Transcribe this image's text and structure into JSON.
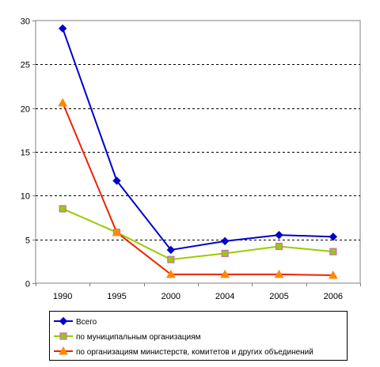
{
  "chart_data": {
    "type": "line",
    "categories": [
      "1990",
      "1995",
      "2000",
      "2004",
      "2005",
      "2006"
    ],
    "ylim": [
      0,
      30
    ],
    "yticks": [
      0,
      5,
      10,
      15,
      20,
      25,
      30
    ],
    "grid": "horizontal-dashed",
    "legend_position": "bottom",
    "series": [
      {
        "name": "Всего",
        "values": [
          29.1,
          11.7,
          3.8,
          4.8,
          5.5,
          5.3
        ],
        "color": "#0000cc",
        "marker": "diamond",
        "marker_fill": "#0000cc"
      },
      {
        "name": "по муниципальным организациям",
        "values": [
          8.5,
          5.8,
          2.7,
          3.4,
          4.2,
          3.6
        ],
        "color": "#99cc00",
        "marker": "square",
        "marker_fill": "#99cc00",
        "marker_stroke": "#cc66cc"
      },
      {
        "name": "по организациям министерств, комитетов и других объединений",
        "values": [
          20.6,
          5.8,
          1.0,
          1.0,
          1.0,
          0.9
        ],
        "color": "#ee2200",
        "marker": "triangle",
        "marker_fill": "#ff8800"
      }
    ]
  }
}
